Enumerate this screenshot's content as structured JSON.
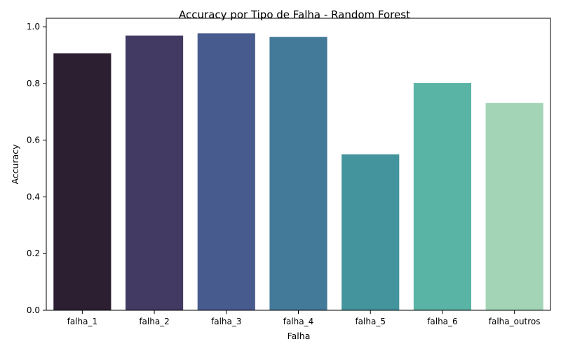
{
  "chart_data": {
    "type": "bar",
    "title": "Accuracy por Tipo de Falha - Random Forest",
    "xlabel": "Falha",
    "ylabel": "Accuracy",
    "categories": [
      "falha_1",
      "falha_2",
      "falha_3",
      "falha_4",
      "falha_5",
      "falha_6",
      "falha_outros"
    ],
    "values": [
      0.906,
      0.969,
      0.977,
      0.964,
      0.55,
      0.802,
      0.731
    ],
    "colors": [
      "#2b1f31",
      "#433a63",
      "#485b8f",
      "#437a99",
      "#43949c",
      "#5ab4a5",
      "#a2d4b5"
    ],
    "ylim": [
      0,
      1.03
    ],
    "yticks": [
      "0.0",
      "0.2",
      "0.4",
      "0.6",
      "0.8",
      "1.0"
    ],
    "grid": false,
    "legend": "none"
  }
}
